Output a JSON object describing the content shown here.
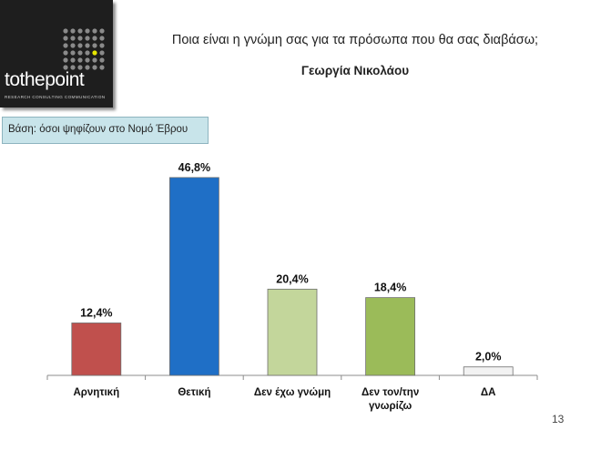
{
  "logo": {
    "brand": "tothepoint",
    "tagline": "RESEARCH CONSULTING COMMUNICATION",
    "dot_color": "#8a8a8a",
    "accent_dot_color": "#e6e600"
  },
  "header": {
    "question": "Ποια είναι η γνώμη σας για τα πρόσωπα που θα σας διαβάσω;",
    "person": "Γεωργία Νικολάου"
  },
  "base_note": "Βάση: όσοι ψηφίζουν στο  Νομό Έβρου",
  "page_number": "13",
  "chart_data": {
    "type": "bar",
    "categories": [
      "Αρνητική",
      "Θετική",
      "Δεν έχω γνώμη",
      "Δεν τον/την γνωρίζω",
      "ΔΑ"
    ],
    "category_lines": [
      [
        "Αρνητική"
      ],
      [
        "Θετική"
      ],
      [
        "Δεν έχω γνώμη"
      ],
      [
        "Δεν τον/την",
        "γνωρίζω"
      ],
      [
        "ΔΑ"
      ]
    ],
    "values": [
      12.4,
      46.8,
      20.4,
      18.4,
      2.0
    ],
    "value_labels": [
      "12,4%",
      "46,8%",
      "20,4%",
      "18,4%",
      "2,0%"
    ],
    "colors": [
      "#c0504d",
      "#1f6fc6",
      "#c3d69b",
      "#9bbb59",
      "#f2f2f2"
    ],
    "ylim": [
      0,
      50
    ],
    "grid": false,
    "legend": false
  }
}
